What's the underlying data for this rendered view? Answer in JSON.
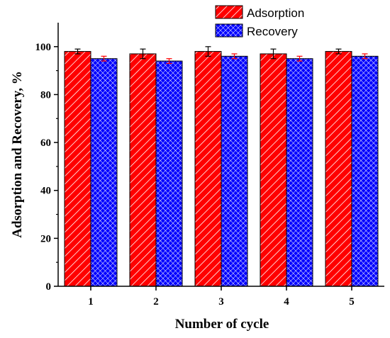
{
  "chart_data": {
    "type": "bar",
    "title": "",
    "xlabel": "Number of cycle",
    "ylabel": "Adsorption and Recovery, %",
    "categories": [
      "1",
      "2",
      "3",
      "4",
      "5"
    ],
    "ylim": [
      0,
      110
    ],
    "yticks": [
      "0",
      "20",
      "40",
      "60",
      "80",
      "100"
    ],
    "legend_position": "top-right",
    "grid": false,
    "series": [
      {
        "name": "Adsorption",
        "values": [
          98,
          97,
          98,
          97,
          98
        ],
        "errors": [
          1,
          2,
          2,
          2,
          1
        ],
        "fill": "#ff0000",
        "pattern": "diagonal-hatch",
        "errorbar_color": "#000000"
      },
      {
        "name": "Recovery",
        "values": [
          95,
          94,
          96,
          95,
          96
        ],
        "errors": [
          1,
          1,
          1,
          1,
          1
        ],
        "fill": "#0000ff",
        "pattern": "crosshatch",
        "errorbar_color": "#ff0000"
      }
    ]
  }
}
